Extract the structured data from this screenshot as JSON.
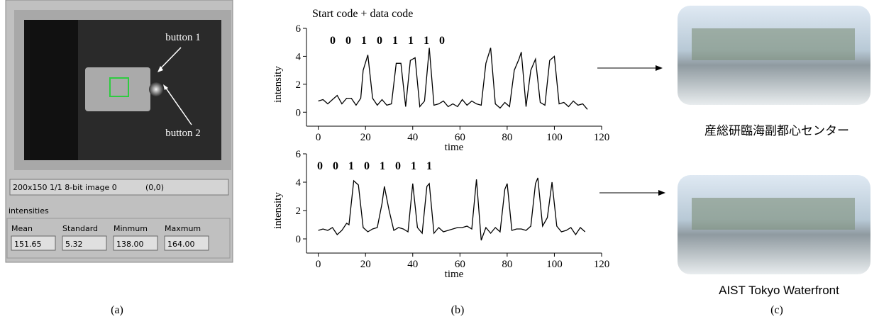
{
  "panel_a": {
    "callouts": [
      "button 1",
      "button 2"
    ],
    "status": "200x150 1/1 8-bit image 0",
    "position": "(0,0)",
    "section": "intensities",
    "fields": [
      {
        "label": "Mean",
        "value": "151.65"
      },
      {
        "label": "Standard",
        "value": "5.32"
      },
      {
        "label": "Minmum",
        "value": "138.00"
      },
      {
        "label": "Maxmum",
        "value": "164.00"
      }
    ],
    "caption": "(a)"
  },
  "chart_data": [
    {
      "type": "line",
      "title": "Start code + data code",
      "annotation": "0 0 1 0 1 1 1 0",
      "x_label": "time",
      "y_label": "intensity",
      "color": "#000000",
      "x": [
        0,
        2,
        4,
        6,
        8,
        10,
        12,
        14,
        16,
        18,
        19,
        21,
        23,
        25,
        27,
        29,
        31,
        33,
        35,
        37,
        39,
        41,
        43,
        45,
        47,
        49,
        51,
        53,
        55,
        57,
        59,
        61,
        63,
        65,
        67,
        69,
        71,
        73,
        75,
        77,
        79,
        81,
        83,
        85,
        86,
        88,
        90,
        92,
        94,
        96,
        98,
        100,
        102,
        104,
        106,
        108,
        110,
        112,
        114
      ],
      "values": [
        0.8,
        0.9,
        0.6,
        0.9,
        1.2,
        0.6,
        1.0,
        1.0,
        0.5,
        1.0,
        3.0,
        4.1,
        1.0,
        0.5,
        0.9,
        0.5,
        0.6,
        3.5,
        3.5,
        0.4,
        3.7,
        3.9,
        0.4,
        0.8,
        4.6,
        0.5,
        0.6,
        0.8,
        0.4,
        0.6,
        0.4,
        0.9,
        0.5,
        0.8,
        0.6,
        0.5,
        3.5,
        4.6,
        0.6,
        0.3,
        0.7,
        0.4,
        3.0,
        3.8,
        4.3,
        0.4,
        3.0,
        3.8,
        0.7,
        0.5,
        3.7,
        4.0,
        0.6,
        0.7,
        0.4,
        0.8,
        0.5,
        0.6,
        0.2
      ],
      "xlim": [
        -5,
        120
      ],
      "ylim": [
        -1,
        6
      ],
      "xticks": [
        0,
        20,
        40,
        60,
        80,
        100,
        120
      ],
      "yticks": [
        0,
        2,
        4,
        6
      ]
    },
    {
      "type": "line",
      "annotation": "0 0 1 0 1 0 1 1",
      "x_label": "time",
      "y_label": "intensity",
      "color": "#000000",
      "x": [
        0,
        2,
        4,
        6,
        8,
        10,
        12,
        13,
        15,
        17,
        19,
        21,
        23,
        25,
        27,
        28,
        30,
        32,
        34,
        36,
        38,
        40,
        42,
        44,
        46,
        47,
        49,
        51,
        53,
        55,
        57,
        59,
        61,
        63,
        65,
        67,
        69,
        71,
        73,
        75,
        77,
        79,
        80,
        82,
        84,
        86,
        88,
        90,
        92,
        93,
        95,
        97,
        99,
        101,
        103,
        105,
        107,
        109,
        111,
        113
      ],
      "values": [
        0.6,
        0.7,
        0.6,
        0.8,
        0.3,
        0.6,
        1.1,
        1.0,
        4.1,
        3.8,
        0.8,
        0.5,
        0.7,
        0.8,
        2.5,
        3.7,
        2.0,
        0.6,
        0.8,
        0.7,
        0.5,
        3.9,
        0.8,
        0.4,
        3.7,
        3.9,
        0.4,
        0.8,
        0.5,
        0.6,
        0.7,
        0.8,
        0.8,
        0.9,
        0.7,
        4.2,
        -0.1,
        0.8,
        0.4,
        0.8,
        0.5,
        3.5,
        3.9,
        0.6,
        0.7,
        0.7,
        0.6,
        0.9,
        3.9,
        4.3,
        0.9,
        1.5,
        4.0,
        0.9,
        0.5,
        0.6,
        0.8,
        0.3,
        0.8,
        0.5
      ],
      "xlim": [
        -5,
        120
      ],
      "ylim": [
        -1,
        6
      ],
      "xticks": [
        0,
        20,
        40,
        60,
        80,
        100,
        120
      ],
      "yticks": [
        0,
        2,
        4,
        6
      ]
    }
  ],
  "panel_b": {
    "caption": "(b)"
  },
  "panel_c": {
    "labels": [
      "産総研臨海副都心センター",
      "AIST Tokyo Waterfront"
    ],
    "caption": "(c)"
  }
}
